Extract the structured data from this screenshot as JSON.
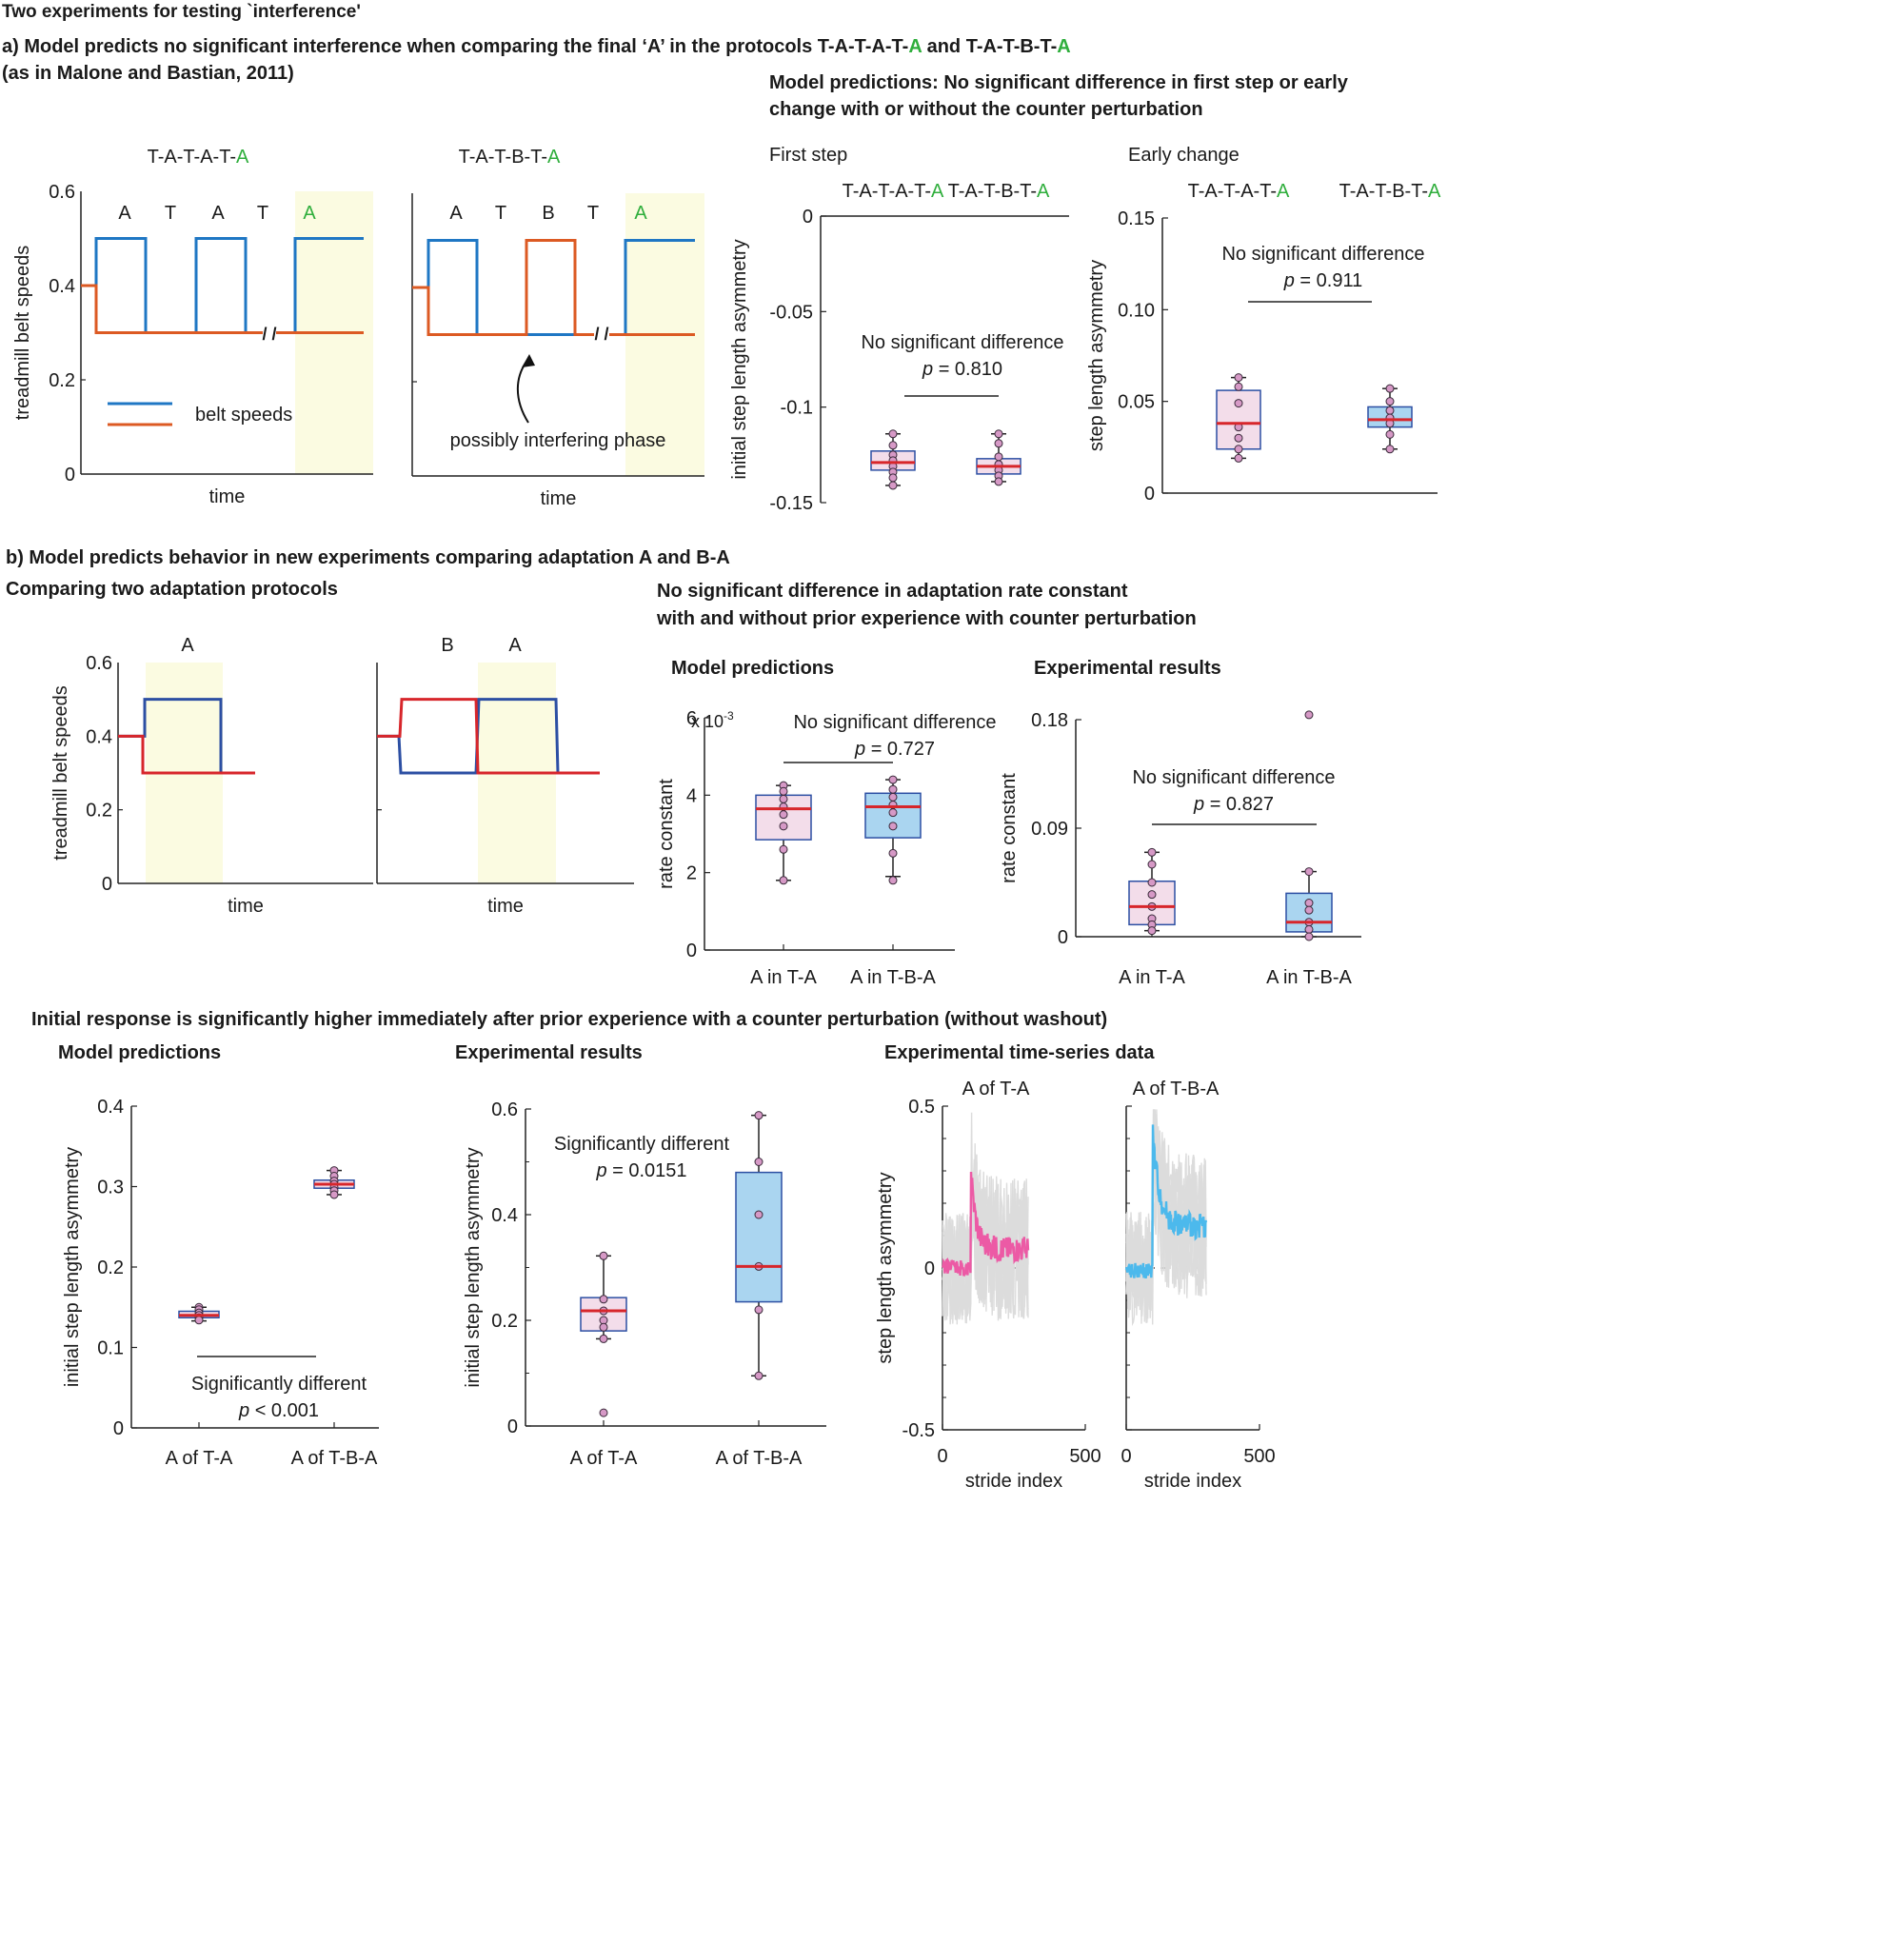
{
  "texts": {
    "title": "Two experiments for testing `interference'",
    "a_line1": "a) Model predicts no significant interference when comparing the final ‘A’ in the protocols T-A-T-A-T-",
    "a_line1_A": "A",
    "a_line1_and": " and  T-A-T-B-T-",
    "a_line1_A2": "A",
    "a_line2": "(as in Malone and Bastian, 2011)",
    "a_pred1": "Model predictions: No significant difference in first step or early",
    "a_pred2": "change with or without the counter perturbation",
    "b_head": "b) Model predicts behavior in new experiments comparing adaptation A and B-A",
    "b_compare": "Comparing two adaptation protocols",
    "b_nosig1": "No significant difference in adaptation rate constant",
    "b_nosig2": "with and without prior experience with counter perturbation",
    "b_modelpred": "Model predictions",
    "b_exp": "Experimental results",
    "c_head": "Initial response is significantly higher immediately after prior experience with a counter perturbation (without washout)",
    "c_model": "Model predictions",
    "c_exp": "Experimental results",
    "c_ts": "Experimental time-series data",
    "first_step": "First step",
    "early_change": "Early change"
  },
  "colors": {
    "blue": "#1f77c4",
    "orange": "#dc5a23",
    "navy": "#2c4fa3",
    "red": "#d7262b",
    "pink_fill": "#f3ddea",
    "blue_fill": "#aad5f0",
    "yellow": "#fbfbe1",
    "green": "#2fae3c",
    "ts_pink": "#ec5aa5",
    "ts_blue": "#4cb9ec",
    "dot": "#d699c6"
  },
  "chart_data": [
    {
      "id": "belt-TATATA",
      "type": "line",
      "title": "T-A-T-A-T-",
      "title_green": "A",
      "ylabel": "treadmill belt speeds",
      "xlabel": "time",
      "ylim": [
        0,
        0.6
      ],
      "yticks": [
        "0",
        "0.2",
        "0.4",
        "0.6"
      ],
      "phase_labels": [
        "A",
        "T",
        "A",
        "T",
        "A"
      ],
      "legend": "belt speeds",
      "series": [
        {
          "values": [
            0.4,
            0.5,
            0.3,
            0.5,
            0.3,
            0.5
          ]
        },
        {
          "values": [
            0.4,
            0.3,
            0.3,
            0.3,
            0.3,
            0.3
          ]
        }
      ]
    },
    {
      "id": "belt-TATBTA",
      "type": "line",
      "title": "T-A-T-B-T-",
      "title_green": "A",
      "xlabel": "time",
      "ylim": [
        0,
        0.6
      ],
      "phase_labels": [
        "A",
        "T",
        "B",
        "T",
        "A"
      ],
      "annotation": "possibly interfering phase"
    },
    {
      "id": "first-step",
      "type": "box",
      "title": "First step",
      "ylabel": "initial step length asymmetry",
      "ylim": [
        -0.15,
        0
      ],
      "yticks": [
        "0",
        "-0.05",
        "-0.1",
        "-0.15"
      ],
      "categories": [
        "T-A-T-A-T-A",
        "T-A-T-B-T-A"
      ],
      "annotation": "No significant difference",
      "p_label": "p",
      "p_text": " = 0.810",
      "boxes": [
        {
          "min": -0.141,
          "q1": -0.133,
          "median": -0.129,
          "q3": -0.123,
          "max": -0.114,
          "points": [
            -0.114,
            -0.12,
            -0.125,
            -0.128,
            -0.131,
            -0.134,
            -0.137,
            -0.141
          ]
        },
        {
          "min": -0.139,
          "q1": -0.135,
          "median": -0.131,
          "q3": -0.127,
          "max": -0.114,
          "points": [
            -0.114,
            -0.119,
            -0.126,
            -0.13,
            -0.133,
            -0.136,
            -0.139
          ]
        }
      ]
    },
    {
      "id": "early-change",
      "type": "box",
      "title": "Early change",
      "ylabel": "step length asymmetry",
      "ylim": [
        0,
        0.15
      ],
      "yticks": [
        "0",
        "0.05",
        "0.10",
        "0.15"
      ],
      "categories": [
        "T-A-T-A-T-A",
        "T-A-T-B-T-A"
      ],
      "annotation": "No significant difference",
      "p_label": "p",
      "p_text": " = 0.911",
      "boxes": [
        {
          "min": 0.019,
          "q1": 0.024,
          "median": 0.038,
          "q3": 0.056,
          "max": 0.063,
          "points": [
            0.063,
            0.058,
            0.049,
            0.036,
            0.03,
            0.024,
            0.019
          ]
        },
        {
          "min": 0.024,
          "q1": 0.036,
          "median": 0.04,
          "q3": 0.047,
          "max": 0.057,
          "points": [
            0.057,
            0.05,
            0.045,
            0.041,
            0.038,
            0.032,
            0.024
          ]
        }
      ]
    },
    {
      "id": "belt-A",
      "type": "line",
      "phase_labels": [
        "A"
      ],
      "ylabel": "treadmill belt speeds",
      "xlabel": "time",
      "ylim": [
        0,
        0.6
      ],
      "yticks": [
        "0",
        "0.2",
        "0.4",
        "0.6"
      ]
    },
    {
      "id": "belt-BA",
      "type": "line",
      "phase_labels": [
        "B",
        "A"
      ],
      "xlabel": "time",
      "ylim": [
        0,
        0.6
      ]
    },
    {
      "id": "rate-model",
      "type": "box",
      "ylabel": "rate constant",
      "scale_label": "x 10",
      "scale_exp": "-3",
      "ylim": [
        0,
        6
      ],
      "yticks": [
        "0",
        "2",
        "4",
        "6"
      ],
      "categories": [
        "A in T-A",
        "A in T-B-A"
      ],
      "annotation": "No significant difference",
      "p_label": "p",
      "p_text": " = 0.727",
      "boxes": [
        {
          "min": 1.8,
          "q1": 2.85,
          "median": 3.65,
          "q3": 4.0,
          "max": 4.25,
          "points": [
            4.25,
            4.1,
            3.9,
            3.7,
            3.5,
            3.2,
            2.6,
            1.8
          ]
        },
        {
          "min": 1.9,
          "q1": 2.9,
          "median": 3.7,
          "q3": 4.05,
          "max": 4.4,
          "points": [
            4.4,
            4.15,
            3.95,
            3.75,
            3.55,
            3.2,
            2.5,
            1.8
          ]
        }
      ]
    },
    {
      "id": "rate-exp",
      "type": "box",
      "ylabel": "rate constant",
      "ylim": [
        0,
        0.18
      ],
      "yticks": [
        "0",
        "0.09",
        "0.18"
      ],
      "categories": [
        "A in T-A",
        "A in T-B-A"
      ],
      "annotation": "No significant difference",
      "p_label": "p",
      "p_text": " = 0.827",
      "boxes": [
        {
          "min": 0.005,
          "q1": 0.01,
          "median": 0.025,
          "q3": 0.046,
          "max": 0.07,
          "points": [
            0.07,
            0.06,
            0.045,
            0.035,
            0.025,
            0.015,
            0.01,
            0.005
          ]
        },
        {
          "min": 0.0,
          "q1": 0.004,
          "median": 0.012,
          "q3": 0.036,
          "max": 0.054,
          "points": [
            0.184,
            0.054,
            0.028,
            0.022,
            0.012,
            0.006,
            0.0
          ]
        }
      ]
    },
    {
      "id": "init-model",
      "type": "box",
      "ylabel": "initial step length asymmetry",
      "ylim": [
        0,
        0.4
      ],
      "yticks": [
        "0",
        "0.1",
        "0.2",
        "0.3",
        "0.4"
      ],
      "categories": [
        "A  of T-A",
        "A of T-B-A"
      ],
      "annotation": "Significantly different",
      "p_label": "p",
      "p_text": " < 0.001",
      "boxes": [
        {
          "min": 0.133,
          "q1": 0.137,
          "median": 0.14,
          "q3": 0.145,
          "max": 0.15,
          "points": [
            0.15,
            0.147,
            0.143,
            0.14,
            0.137,
            0.134
          ]
        },
        {
          "min": 0.29,
          "q1": 0.298,
          "median": 0.303,
          "q3": 0.308,
          "max": 0.32,
          "points": [
            0.32,
            0.313,
            0.307,
            0.303,
            0.299,
            0.295,
            0.29
          ]
        }
      ]
    },
    {
      "id": "init-exp",
      "type": "box",
      "ylabel": "initial step length asymmetry",
      "ylim": [
        0,
        0.6
      ],
      "yticks": [
        "0",
        "0.2",
        "0.4",
        "0.6"
      ],
      "categories": [
        "A  of T-A",
        "A of T-B-A"
      ],
      "annotation": "Significantly different",
      "p_label": "p",
      "p_text": " = 0.0151",
      "boxes": [
        {
          "min": 0.165,
          "q1": 0.18,
          "median": 0.218,
          "q3": 0.243,
          "max": 0.322,
          "points": [
            0.322,
            0.24,
            0.218,
            0.2,
            0.187,
            0.165,
            0.025
          ]
        },
        {
          "min": 0.095,
          "q1": 0.235,
          "median": 0.302,
          "q3": 0.48,
          "max": 0.588,
          "points": [
            0.588,
            0.5,
            0.4,
            0.302,
            0.22,
            0.095
          ]
        }
      ]
    },
    {
      "id": "ts-TA",
      "type": "line",
      "title": "A  of T-A",
      "ylabel": "step length asymmetry",
      "xlabel": "stride index",
      "xlim": [
        0,
        500
      ],
      "xticks": [
        "0",
        "500"
      ],
      "ylim": [
        -0.5,
        0.5
      ],
      "yticks": [
        "0.5",
        "0",
        "-0.5"
      ]
    },
    {
      "id": "ts-TBA",
      "type": "line",
      "title": "A of T-B-A",
      "xlabel": "stride index",
      "xlim": [
        0,
        500
      ],
      "xticks": [
        "0",
        "500"
      ],
      "ylim": [
        -0.5,
        0.5
      ]
    }
  ]
}
